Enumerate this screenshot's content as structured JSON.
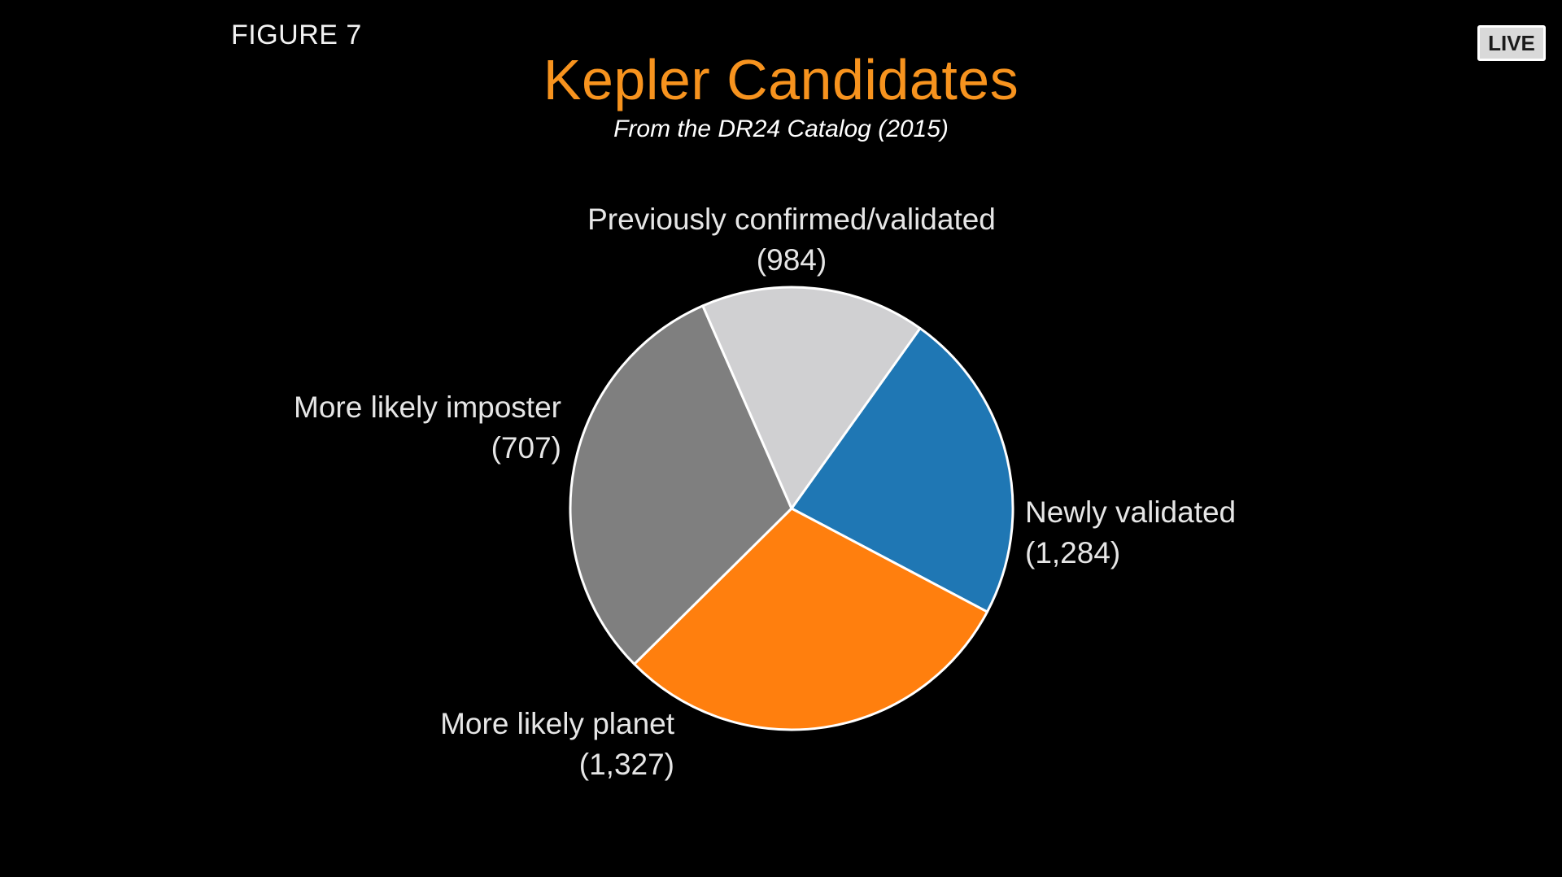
{
  "header": {
    "figure_label": "FIGURE 7",
    "live_badge": "LIVE"
  },
  "chart_data": {
    "type": "pie",
    "title": "Kepler Candidates",
    "subtitle": "From the DR24 Catalog (2015)",
    "slices": [
      {
        "label": "Previously confirmed/validated",
        "value": 984,
        "value_label": "(984)",
        "color": "#1f77b4"
      },
      {
        "label": "Newly validated",
        "value": 1284,
        "value_label": "(1,284)",
        "color": "#ff7f0e"
      },
      {
        "label": "More likely planet",
        "value": 1327,
        "value_label": "(1,327)",
        "color": "#7f7f7f"
      },
      {
        "label": "More likely imposter",
        "value": 707,
        "value_label": "(707)",
        "color": "#d0d0d2"
      }
    ],
    "legend": "none"
  },
  "colors": {
    "background": "#000000",
    "title": "#f7931e",
    "text": "#e6e6e6"
  }
}
